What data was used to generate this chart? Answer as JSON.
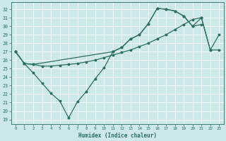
{
  "xlabel": "Humidex (Indice chaleur)",
  "bg_color": "#cce8e8",
  "line_color": "#2d6e5e",
  "grid_color": "#b0d4d4",
  "xlim": [
    -0.5,
    23.5
  ],
  "ylim": [
    18.5,
    32.8
  ],
  "yticks": [
    19,
    20,
    21,
    22,
    23,
    24,
    25,
    26,
    27,
    28,
    29,
    30,
    31,
    32
  ],
  "xticks": [
    0,
    1,
    2,
    3,
    4,
    5,
    6,
    7,
    8,
    9,
    10,
    11,
    12,
    13,
    14,
    15,
    16,
    17,
    18,
    19,
    20,
    21,
    22,
    23
  ],
  "line1_x": [
    0,
    1,
    2,
    3,
    4,
    5,
    6,
    7,
    8,
    9,
    10,
    11,
    12,
    13,
    14,
    15,
    16,
    17,
    18,
    19,
    20,
    21
  ],
  "line1_y": [
    27.0,
    25.6,
    24.5,
    23.3,
    22.1,
    21.2,
    19.2,
    21.1,
    22.3,
    23.8,
    25.1,
    27.0,
    27.5,
    28.5,
    29.0,
    30.3,
    32.1,
    32.0,
    31.8,
    31.2,
    30.0,
    30.2
  ],
  "line2_x": [
    0,
    1,
    2,
    3,
    4,
    5,
    6,
    7,
    8,
    9,
    10,
    11,
    12,
    13,
    14,
    15,
    16,
    17,
    18,
    19,
    20,
    21,
    22,
    23
  ],
  "line2_y": [
    27.0,
    25.6,
    25.5,
    25.3,
    25.3,
    25.4,
    25.5,
    25.6,
    25.8,
    26.0,
    26.3,
    26.6,
    26.9,
    27.2,
    27.6,
    28.0,
    28.5,
    29.0,
    29.6,
    30.2,
    30.8,
    31.0,
    27.2,
    27.2
  ],
  "line3_x": [
    0,
    1,
    2,
    11,
    12,
    13,
    14,
    15,
    16,
    17,
    18,
    19,
    20,
    21,
    22,
    23
  ],
  "line3_y": [
    27.0,
    25.6,
    25.5,
    27.0,
    27.5,
    28.5,
    29.0,
    30.3,
    32.1,
    32.0,
    31.8,
    31.2,
    30.0,
    31.0,
    27.2,
    29.0
  ]
}
